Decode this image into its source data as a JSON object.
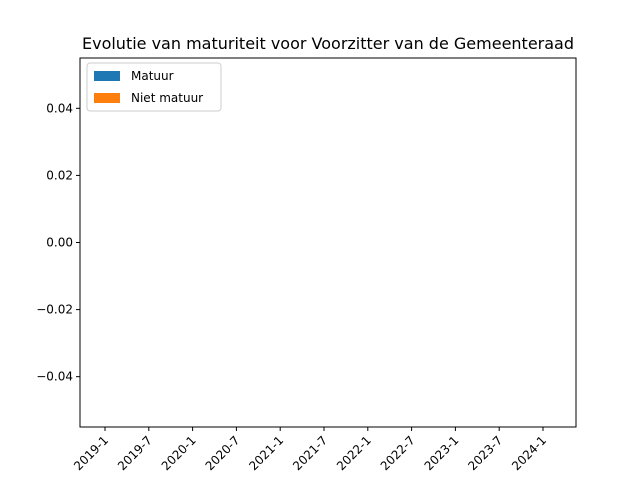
{
  "chart_data": {
    "type": "bar",
    "title": "Evolutie van maturiteit voor Voorzitter van de Gemeenteraad",
    "xlabel": "",
    "ylabel": "",
    "categories": [
      "2019-1",
      "2019-7",
      "2020-1",
      "2020-7",
      "2021-1",
      "2021-7",
      "2022-1",
      "2022-7",
      "2023-1",
      "2023-7",
      "2024-1"
    ],
    "series": [
      {
        "name": "Matuur",
        "color": "#1f77b4",
        "values": [
          0,
          0,
          0,
          0,
          0,
          0,
          0,
          0,
          0,
          0,
          0
        ]
      },
      {
        "name": "Niet matuur",
        "color": "#ff7f0e",
        "values": [
          0,
          0,
          0,
          0,
          0,
          0,
          0,
          0,
          0,
          0,
          0
        ]
      }
    ],
    "stacked": true,
    "ylim": [
      -0.055,
      0.055
    ],
    "yticks": [
      0.04,
      0.02,
      0.0,
      -0.02,
      -0.04
    ],
    "ytick_labels": [
      "0.04",
      "0.02",
      "0.00",
      "−0.02",
      "−0.04"
    ],
    "x_tick_rotation": 45,
    "grid": false,
    "legend_position": "top-left"
  }
}
